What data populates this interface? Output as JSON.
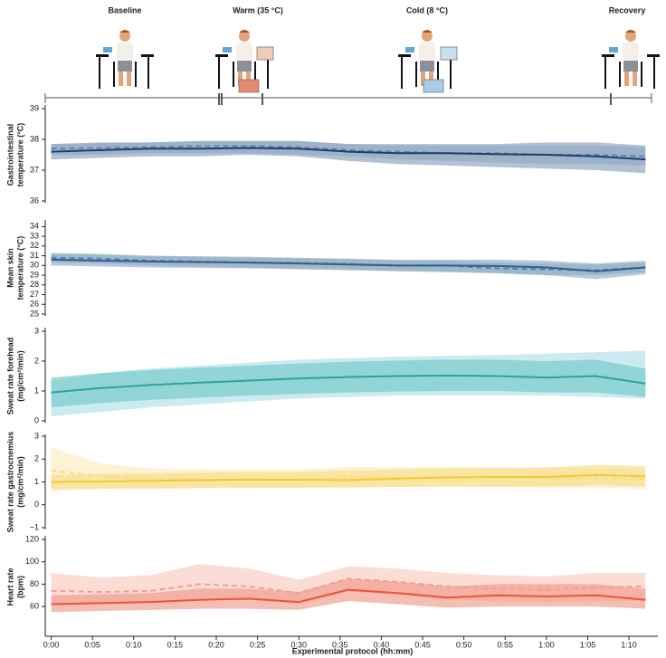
{
  "protocol": {
    "phases": [
      "Baseline",
      "Warm (35 °C)",
      "Cold (8 °C)",
      "Recovery"
    ]
  },
  "chart_data": [
    {
      "type": "line",
      "ylabel": [
        "Gastrointestinal",
        "temperature (°C)"
      ],
      "x": [
        0,
        6,
        12,
        18,
        24,
        30,
        36,
        42,
        48,
        54,
        60,
        66,
        72
      ],
      "xlim": [
        -0.5,
        73.5
      ],
      "ylim": [
        36,
        39
      ],
      "yticks": [
        36,
        37,
        38,
        39
      ],
      "series": [
        {
          "color": "#5f86b3",
          "band_color": "#a9bfdb",
          "line_style": "dashed",
          "values": [
            37.7,
            37.72,
            37.75,
            37.78,
            37.78,
            37.75,
            37.65,
            37.6,
            37.55,
            37.55,
            37.5,
            37.5,
            37.45
          ],
          "lower": [
            37.5,
            37.5,
            37.55,
            37.55,
            37.55,
            37.5,
            37.45,
            37.35,
            37.3,
            37.25,
            37.2,
            37.2,
            37.15
          ],
          "upper": [
            37.85,
            37.88,
            37.9,
            37.95,
            37.95,
            37.95,
            37.85,
            37.8,
            37.8,
            37.8,
            37.8,
            37.8,
            37.75
          ]
        },
        {
          "color": "#1f3f66",
          "band_color": "#7f97b5",
          "line_style": "solid",
          "values": [
            37.6,
            37.65,
            37.7,
            37.7,
            37.72,
            37.7,
            37.6,
            37.55,
            37.55,
            37.52,
            37.5,
            37.45,
            37.35
          ],
          "lower": [
            37.35,
            37.4,
            37.45,
            37.45,
            37.5,
            37.45,
            37.3,
            37.2,
            37.15,
            37.1,
            37.05,
            37.0,
            36.9
          ],
          "upper": [
            37.85,
            37.9,
            37.9,
            37.95,
            37.95,
            37.95,
            37.85,
            37.85,
            37.85,
            37.85,
            37.9,
            37.9,
            37.8
          ]
        }
      ]
    },
    {
      "type": "line",
      "ylabel": [
        "Mean skin",
        "temperature (°C)"
      ],
      "x": [
        0,
        6,
        12,
        18,
        24,
        30,
        36,
        42,
        48,
        54,
        60,
        66,
        72
      ],
      "xlim": [
        -0.5,
        73.5
      ],
      "ylim": [
        25,
        34.5
      ],
      "yticks": [
        25,
        26,
        27,
        28,
        29,
        30,
        31,
        32,
        33,
        34
      ],
      "series": [
        {
          "color": "#4b83bd",
          "band_color": "#95b9a6",
          "line_style": "dashed",
          "values": [
            30.8,
            30.7,
            30.5,
            30.4,
            30.3,
            30.25,
            30.15,
            30.0,
            30.0,
            29.7,
            29.6,
            29.5,
            29.8
          ],
          "lower": [
            30.3,
            30.2,
            30.0,
            29.9,
            29.8,
            29.7,
            29.6,
            29.45,
            29.4,
            29.2,
            29.0,
            29.0,
            29.3
          ],
          "upper": [
            31.3,
            31.2,
            31.0,
            30.9,
            30.8,
            30.75,
            30.65,
            30.5,
            30.5,
            30.3,
            30.2,
            30.1,
            30.3
          ]
        },
        {
          "color": "#2d5f94",
          "band_color": "#8aa5c4",
          "line_style": "solid",
          "values": [
            30.6,
            30.5,
            30.4,
            30.35,
            30.3,
            30.2,
            30.1,
            30.0,
            30.0,
            29.95,
            29.8,
            29.4,
            29.8
          ],
          "lower": [
            30.0,
            29.9,
            29.8,
            29.75,
            29.7,
            29.6,
            29.5,
            29.4,
            29.3,
            29.2,
            29.0,
            28.6,
            29.1
          ],
          "upper": [
            31.2,
            31.1,
            31.0,
            30.95,
            30.9,
            30.8,
            30.7,
            30.6,
            30.6,
            30.6,
            30.5,
            30.2,
            30.5
          ]
        }
      ]
    },
    {
      "type": "line",
      "ylabel": [
        "Sweat rate forehead",
        "(mg/cm²/min)"
      ],
      "x": [
        0,
        6,
        12,
        18,
        24,
        30,
        36,
        42,
        48,
        54,
        60,
        66,
        72
      ],
      "xlim": [
        -0.5,
        73.5
      ],
      "ylim": [
        0,
        3
      ],
      "yticks": [
        0,
        1,
        2,
        3
      ],
      "series": [
        {
          "color": "#8fd3cc",
          "band_color": "#a8dde8",
          "line_style": "dashed",
          "values": [
            0.75,
            0.95,
            1.1,
            1.2,
            1.3,
            1.4,
            1.45,
            1.5,
            1.5,
            1.52,
            1.55,
            1.55,
            1.52
          ],
          "lower": [
            0.15,
            0.3,
            0.45,
            0.55,
            0.65,
            0.75,
            0.8,
            0.85,
            0.85,
            0.85,
            0.85,
            0.8,
            0.75
          ],
          "upper": [
            1.35,
            1.6,
            1.75,
            1.85,
            1.95,
            2.05,
            2.1,
            2.15,
            2.18,
            2.2,
            2.25,
            2.3,
            2.35
          ]
        },
        {
          "color": "#2aa59a",
          "band_color": "#6cc6c4",
          "line_style": "solid",
          "values": [
            0.95,
            1.1,
            1.2,
            1.28,
            1.35,
            1.42,
            1.47,
            1.5,
            1.52,
            1.5,
            1.45,
            1.5,
            1.25
          ],
          "lower": [
            0.45,
            0.6,
            0.7,
            0.78,
            0.85,
            0.9,
            0.95,
            0.98,
            1.0,
            1.0,
            0.95,
            0.95,
            0.8
          ],
          "upper": [
            1.45,
            1.6,
            1.7,
            1.78,
            1.85,
            1.92,
            1.98,
            2.02,
            2.05,
            2.05,
            2.0,
            2.05,
            1.75
          ]
        }
      ]
    },
    {
      "type": "line",
      "ylabel": [
        "Sweat rate gastrocnemius",
        "(mg/cm²/min)"
      ],
      "x": [
        0,
        6,
        12,
        18,
        24,
        30,
        36,
        42,
        48,
        54,
        60,
        66,
        72
      ],
      "xlim": [
        -0.5,
        73.5
      ],
      "ylim": [
        -1,
        3
      ],
      "yticks": [
        {
          "value": -1,
          "label": "−1"
        },
        0,
        1,
        2,
        3
      ],
      "series": [
        {
          "color": "#f6dc8a",
          "band_color": "#fbe9b5",
          "line_style": "dashed",
          "values": [
            1.5,
            1.25,
            1.15,
            1.12,
            1.12,
            1.12,
            1.2,
            1.2,
            1.22,
            1.2,
            1.18,
            1.15,
            1.15
          ],
          "lower": [
            0.6,
            0.7,
            0.7,
            0.72,
            0.72,
            0.75,
            0.8,
            0.8,
            0.8,
            0.78,
            0.75,
            0.75,
            0.7
          ],
          "upper": [
            2.5,
            1.8,
            1.6,
            1.55,
            1.55,
            1.55,
            1.65,
            1.65,
            1.65,
            1.65,
            1.65,
            1.6,
            1.6
          ]
        },
        {
          "color": "#f2c933",
          "band_color": "#f7dc80",
          "line_style": "solid",
          "values": [
            1.0,
            1.02,
            1.05,
            1.08,
            1.1,
            1.1,
            1.08,
            1.15,
            1.2,
            1.22,
            1.22,
            1.3,
            1.25
          ],
          "lower": [
            0.7,
            0.7,
            0.72,
            0.75,
            0.75,
            0.75,
            0.75,
            0.78,
            0.8,
            0.8,
            0.8,
            0.85,
            0.8
          ],
          "upper": [
            1.3,
            1.35,
            1.38,
            1.4,
            1.45,
            1.45,
            1.5,
            1.55,
            1.6,
            1.6,
            1.62,
            1.75,
            1.7
          ]
        }
      ]
    },
    {
      "type": "line",
      "ylabel": [
        "Heart rate",
        "(bpm)"
      ],
      "x": [
        0,
        6,
        12,
        18,
        24,
        30,
        36,
        42,
        48,
        54,
        60,
        66,
        72
      ],
      "xlim": [
        -0.5,
        73.5
      ],
      "ylim": [
        35,
        120
      ],
      "yticks": [
        60,
        80,
        100,
        120
      ],
      "xlabel": "Experimental protocol (hh:mm)",
      "xticks": [
        {
          "value": 0,
          "label": "0:00"
        },
        {
          "value": 5,
          "label": "0:05"
        },
        {
          "value": 10,
          "label": "0:10"
        },
        {
          "value": 15,
          "label": "0:15"
        },
        {
          "value": 20,
          "label": "0:20"
        },
        {
          "value": 25,
          "label": "0:25"
        },
        {
          "value": 30,
          "label": "0:30"
        },
        {
          "value": 35,
          "label": "0:35"
        },
        {
          "value": 40,
          "label": "0:40"
        },
        {
          "value": 45,
          "label": "0:45"
        },
        {
          "value": 50,
          "label": "0:50"
        },
        {
          "value": 55,
          "label": "0:55"
        },
        {
          "value": 60,
          "label": "1:00"
        },
        {
          "value": 65,
          "label": "1:05"
        },
        {
          "value": 70,
          "label": "1:10"
        }
      ],
      "series": [
        {
          "color": "#f2a08f",
          "band_color": "#f8c6ba",
          "line_style": "dashed",
          "values": [
            74,
            73,
            74,
            80,
            78,
            72,
            85,
            82,
            78,
            76,
            75,
            77,
            78
          ],
          "lower": [
            62,
            62,
            63,
            66,
            66,
            62,
            73,
            70,
            66,
            65,
            64,
            65,
            65
          ],
          "upper": [
            90,
            86,
            88,
            98,
            94,
            84,
            96,
            94,
            90,
            88,
            87,
            90,
            90
          ]
        },
        {
          "color": "#e8553f",
          "band_color": "#ef9280",
          "line_style": "solid",
          "values": [
            62,
            63,
            64,
            66,
            67,
            64,
            75,
            72,
            68,
            70,
            69,
            70,
            66
          ],
          "lower": [
            55,
            56,
            57,
            58,
            58,
            57,
            65,
            62,
            59,
            60,
            60,
            60,
            58
          ],
          "upper": [
            70,
            71,
            72,
            76,
            76,
            73,
            85,
            82,
            78,
            80,
            80,
            80,
            76
          ]
        }
      ]
    }
  ]
}
